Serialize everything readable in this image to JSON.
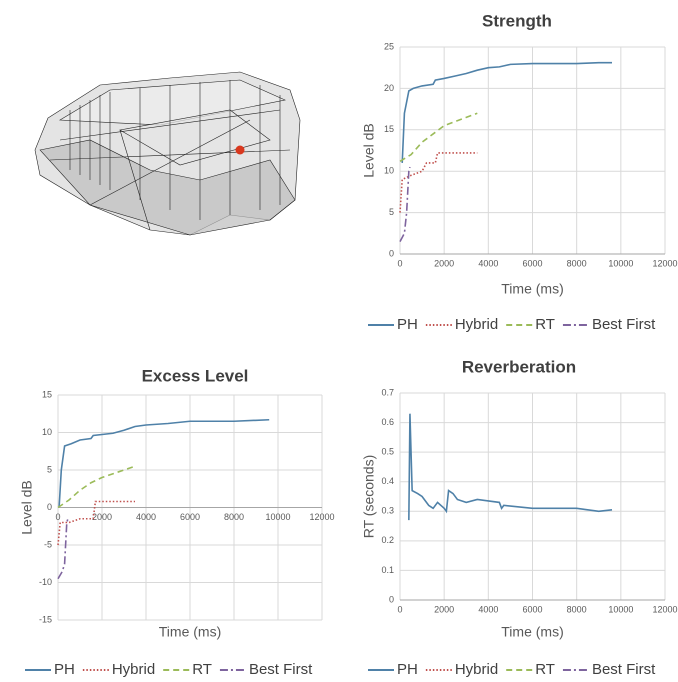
{
  "chart_data": [
    {
      "type": "line",
      "title": "Strength",
      "y_label": "Level dB",
      "x_label": "Time (ms)",
      "xlim": [
        0,
        12000
      ],
      "xticks": [
        0,
        2000,
        4000,
        6000,
        8000,
        10000,
        12000
      ],
      "ylim": [
        0,
        25
      ],
      "yticks": [
        0,
        5,
        10,
        15,
        20,
        25
      ],
      "grid": true,
      "series": [
        {
          "name": "PH",
          "color": "#4f81a8",
          "dash": "solid",
          "x": [
            100,
            200,
            400,
            600,
            1000,
            1500,
            1600,
            2000,
            2500,
            3000,
            3500,
            4000,
            4500,
            5000,
            6000,
            8000,
            9000,
            9600
          ],
          "values": [
            11,
            17,
            19.7,
            20,
            20.3,
            20.5,
            21,
            21.2,
            21.5,
            21.8,
            22.2,
            22.5,
            22.6,
            22.9,
            23,
            23,
            23.1,
            23.1
          ]
        },
        {
          "name": "Hybrid",
          "color": "#c0504d",
          "dash": "dotted",
          "x": [
            0,
            100,
            500,
            1000,
            1200,
            1600,
            1700,
            3500
          ],
          "values": [
            5,
            9,
            9.5,
            10,
            11,
            11,
            12.2,
            12.2
          ]
        },
        {
          "name": "RT",
          "color": "#9bbb59",
          "dash": "dashed",
          "x": [
            0,
            500,
            1000,
            1500,
            2000,
            2500,
            3000,
            3500
          ],
          "values": [
            11.2,
            12,
            13.5,
            14.5,
            15.5,
            16,
            16.5,
            17
          ]
        },
        {
          "name": "Best First",
          "color": "#7e649e",
          "dash": "dashdot",
          "x": [
            0,
            200,
            300,
            400,
            450
          ],
          "values": [
            1.5,
            2.5,
            5,
            10,
            10.5
          ]
        }
      ]
    },
    {
      "type": "line",
      "title": "Excess Level",
      "y_label": "Level dB",
      "x_label": "Time (ms)",
      "xlim": [
        0,
        12000
      ],
      "xticks": [
        0,
        2000,
        4000,
        6000,
        8000,
        10000,
        12000
      ],
      "ylim": [
        -15,
        15
      ],
      "yticks": [
        -15,
        -10,
        -5,
        0,
        5,
        10,
        15
      ],
      "grid": true,
      "series": [
        {
          "name": "PH",
          "color": "#4f81a8",
          "dash": "solid",
          "x": [
            50,
            150,
            300,
            600,
            1000,
            1500,
            1600,
            2500,
            3000,
            3500,
            4000,
            5000,
            6000,
            8000,
            9600
          ],
          "values": [
            0,
            5,
            8.2,
            8.5,
            9,
            9.2,
            9.6,
            9.9,
            10.3,
            10.8,
            11,
            11.2,
            11.5,
            11.5,
            11.7
          ]
        },
        {
          "name": "Hybrid",
          "color": "#c0504d",
          "dash": "dotted",
          "x": [
            0,
            100,
            500,
            1000,
            1600,
            1700,
            3500
          ],
          "values": [
            -5,
            -2,
            -2,
            -1.5,
            -1.5,
            0.8,
            0.8
          ]
        },
        {
          "name": "RT",
          "color": "#9bbb59",
          "dash": "dashed",
          "x": [
            0,
            500,
            1000,
            1500,
            2000,
            3000,
            3500
          ],
          "values": [
            0,
            1,
            2.3,
            3.3,
            4,
            5,
            5.5
          ]
        },
        {
          "name": "Best First",
          "color": "#7e649e",
          "dash": "dashdot",
          "x": [
            0,
            200,
            300,
            400,
            450
          ],
          "values": [
            -9.5,
            -8.5,
            -7.5,
            -2,
            -1.5
          ]
        }
      ]
    },
    {
      "type": "line",
      "title": "Reverberation",
      "y_label": "RT (seconds)",
      "x_label": "Time (ms)",
      "xlim": [
        0,
        12000
      ],
      "xticks": [
        0,
        2000,
        4000,
        6000,
        8000,
        10000,
        12000
      ],
      "ylim": [
        0,
        0.7
      ],
      "yticks": [
        0,
        0.1,
        0.2,
        0.3,
        0.4,
        0.5,
        0.6,
        0.7
      ],
      "grid": true,
      "series": [
        {
          "name": "PH",
          "color": "#4f81a8",
          "dash": "solid",
          "x": [
            400,
            450,
            550,
            800,
            1000,
            1300,
            1500,
            1700,
            2000,
            2100,
            2200,
            2400,
            2600,
            3000,
            3500,
            4000,
            4500,
            4600,
            4700,
            6000,
            8000,
            9000,
            9600
          ],
          "values": [
            0.27,
            0.63,
            0.37,
            0.36,
            0.35,
            0.32,
            0.31,
            0.33,
            0.31,
            0.3,
            0.37,
            0.36,
            0.34,
            0.33,
            0.34,
            0.335,
            0.33,
            0.31,
            0.32,
            0.31,
            0.31,
            0.3,
            0.305
          ]
        },
        {
          "name": "Hybrid",
          "color": "#c0504d",
          "dash": "dotted",
          "x": [],
          "values": []
        },
        {
          "name": "RT",
          "color": "#9bbb59",
          "dash": "dashed",
          "x": [],
          "values": []
        },
        {
          "name": "Best First",
          "color": "#7e649e",
          "dash": "dashdot",
          "x": [],
          "values": []
        }
      ]
    }
  ]
}
